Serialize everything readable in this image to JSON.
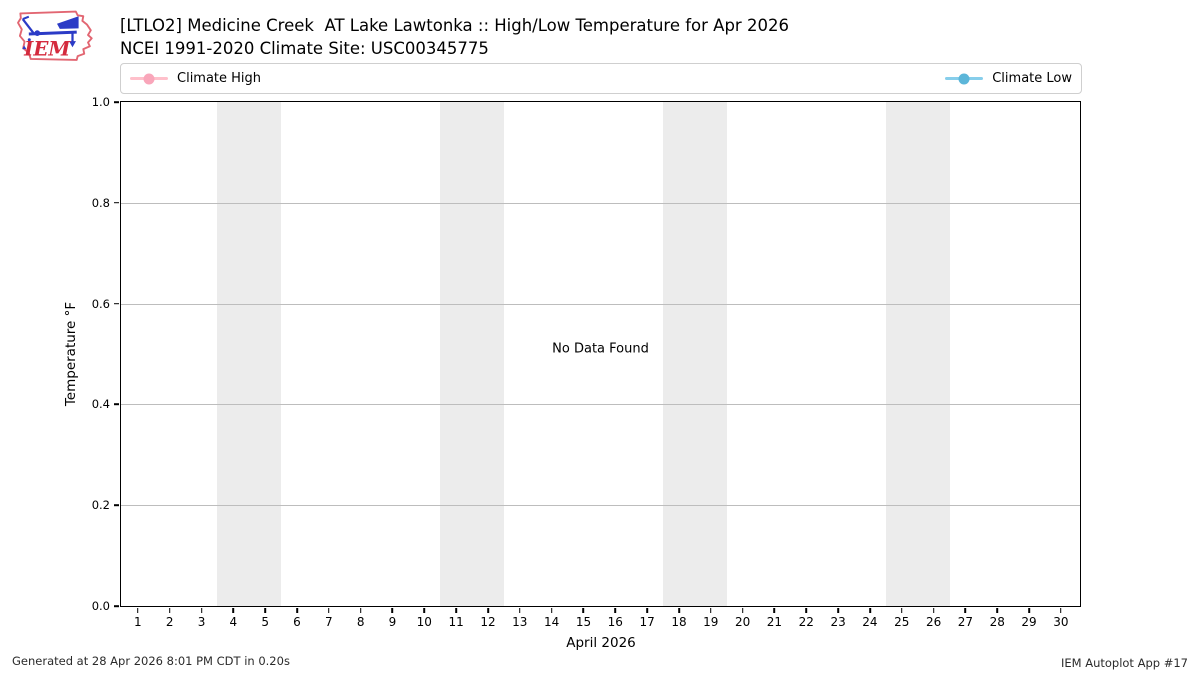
{
  "header": {
    "logo_text": "IEM",
    "title_line1": "[LTLO2] Medicine Creek  AT Lake Lawtonka :: High/Low Temperature for Apr 2026",
    "title_line2": "NCEI 1991-2020 Climate Site: USC00345775"
  },
  "legend": {
    "items": [
      {
        "label": "Climate High",
        "line_color": "#ffc0cb",
        "marker_color": "#f9a6ba"
      },
      {
        "label": "Climate Low",
        "line_color": "#87ceeb",
        "marker_color": "#5cb6d9"
      }
    ]
  },
  "chart_data": {
    "type": "line",
    "title": "[LTLO2] Medicine Creek  AT Lake Lawtonka :: High/Low Temperature for Apr 2026",
    "subtitle": "NCEI 1991-2020 Climate Site: USC00345775",
    "xlabel": "April 2026",
    "ylabel": "Temperature °F",
    "xlim": [
      0.47,
      30.6
    ],
    "ylim": [
      0.0,
      1.0
    ],
    "yticks": [
      "0.0",
      "0.2",
      "0.4",
      "0.6",
      "0.8",
      "1.0"
    ],
    "xticks": [
      "1",
      "2",
      "3",
      "4",
      "5",
      "6",
      "7",
      "8",
      "9",
      "10",
      "11",
      "12",
      "13",
      "14",
      "15",
      "16",
      "17",
      "18",
      "19",
      "20",
      "21",
      "22",
      "23",
      "24",
      "25",
      "26",
      "27",
      "28",
      "29",
      "30"
    ],
    "grid": "horizontal",
    "grid_color": "#bdbdbd",
    "band_color": "#ececec",
    "weekend_bands": [
      [
        3.5,
        5.5
      ],
      [
        10.5,
        12.5
      ],
      [
        17.5,
        19.5
      ],
      [
        24.5,
        26.5
      ]
    ],
    "legend_position": "top-expanded",
    "series": [
      {
        "name": "Climate High",
        "color": "#ffc0cb",
        "values": []
      },
      {
        "name": "Climate Low",
        "color": "#87ceeb",
        "values": []
      }
    ],
    "no_data_text": "No Data Found"
  },
  "footer": {
    "left": "Generated at 28 Apr 2026 8:01 PM CDT in 0.20s",
    "right": "IEM Autoplot App #17"
  }
}
